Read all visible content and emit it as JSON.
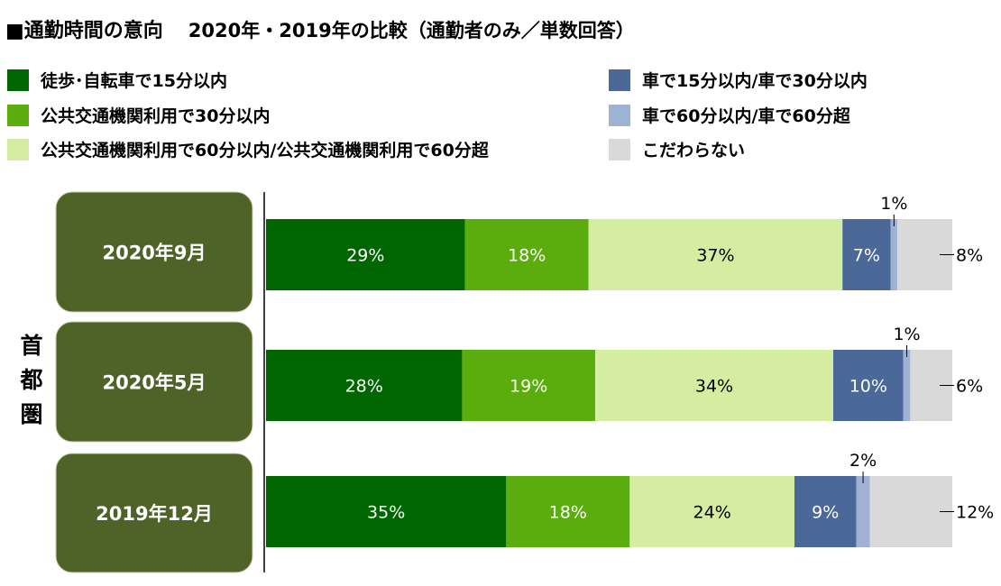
{
  "title": "■通勤時間の意向",
  "subtitle": "2020年・2019年の比較（通勤者のみ／単数回答）",
  "region_label": "首都圏",
  "chart_data": {
    "type": "bar",
    "orientation": "horizontal",
    "stacked": true,
    "percent": true,
    "categories": [
      "2020年9月",
      "2020年5月",
      "2019年12月"
    ],
    "series": [
      {
        "name": "徒歩･自転車で15分以内",
        "color": "#006600",
        "values": [
          29,
          28,
          35
        ]
      },
      {
        "name": "公共交通機関利用で30分以内",
        "color": "#5aad0c",
        "values": [
          18,
          19,
          18
        ]
      },
      {
        "name": "公共交通機関利用で60分以内/公共交通機関利用で60分超",
        "color": "#d5eda1",
        "values": [
          37,
          34,
          24
        ]
      },
      {
        "name": "車で15分以内/車で30分以内",
        "color": "#4a6898",
        "values": [
          7,
          10,
          9
        ]
      },
      {
        "name": "車で60分以内/車で60分超",
        "color": "#9fb2d4",
        "values": [
          1,
          1,
          2
        ]
      },
      {
        "name": "こだわらない",
        "color": "#d9d9d9",
        "values": [
          8,
          6,
          12
        ]
      }
    ],
    "value_suffix": "%",
    "label_box_color": "#4f6228",
    "legend_position": "top"
  }
}
